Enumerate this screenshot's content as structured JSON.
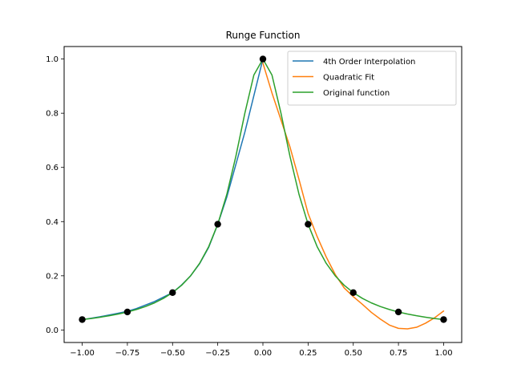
{
  "chart_data": {
    "type": "line",
    "title": "Runge Function",
    "xlabel": "",
    "ylabel": "",
    "xlim": [
      -1.1,
      1.1
    ],
    "ylim": [
      -0.0462,
      1.0462
    ],
    "xticks": [
      -1.0,
      -0.75,
      -0.5,
      -0.25,
      0.0,
      0.25,
      0.5,
      0.75,
      1.0
    ],
    "xtick_labels": [
      "−1.00",
      "−0.75",
      "−0.50",
      "−0.25",
      "0.00",
      "0.25",
      "0.50",
      "0.75",
      "1.00"
    ],
    "yticks": [
      0.0,
      0.2,
      0.4,
      0.6,
      0.8,
      1.0
    ],
    "ytick_labels": [
      "0.0",
      "0.2",
      "0.4",
      "0.6",
      "0.8",
      "1.0"
    ],
    "grid": false,
    "legend_position": "top-right",
    "series": [
      {
        "name": "4th Order Interpolation",
        "color": "#1f77b4",
        "x": [
          -1.0,
          -0.9,
          -0.8,
          -0.75,
          -0.7,
          -0.6,
          -0.5,
          -0.45,
          -0.4,
          -0.35,
          -0.3,
          -0.25,
          -0.2,
          -0.15,
          -0.1,
          -0.05,
          0.0
        ],
        "y": [
          0.038,
          0.049,
          0.062,
          0.069,
          0.079,
          0.105,
          0.138,
          0.166,
          0.2,
          0.245,
          0.305,
          0.39,
          0.49,
          0.61,
          0.73,
          0.865,
          1.0
        ]
      },
      {
        "name": "Quadratic Fit",
        "color": "#ff7f0e",
        "x": [
          0.0,
          0.05,
          0.1,
          0.15,
          0.2,
          0.25,
          0.3,
          0.35,
          0.4,
          0.45,
          0.5,
          0.55,
          0.6,
          0.65,
          0.7,
          0.75,
          0.8,
          0.85,
          0.9,
          0.95,
          1.0
        ],
        "y": [
          0.985,
          0.875,
          0.775,
          0.675,
          0.555,
          0.43,
          0.345,
          0.27,
          0.205,
          0.155,
          0.123,
          0.095,
          0.065,
          0.04,
          0.018,
          0.006,
          0.004,
          0.01,
          0.025,
          0.045,
          0.07
        ]
      },
      {
        "name": "Original function",
        "color": "#2ca02c",
        "x": [
          -1.0,
          -0.95,
          -0.9,
          -0.85,
          -0.8,
          -0.75,
          -0.7,
          -0.65,
          -0.6,
          -0.55,
          -0.5,
          -0.45,
          -0.4,
          -0.35,
          -0.3,
          -0.25,
          -0.2,
          -0.15,
          -0.1,
          -0.05,
          0.0,
          0.05,
          0.1,
          0.15,
          0.2,
          0.25,
          0.3,
          0.35,
          0.4,
          0.45,
          0.5,
          0.55,
          0.6,
          0.65,
          0.7,
          0.75,
          0.8,
          0.85,
          0.9,
          0.95,
          1.0
        ],
        "y": [
          0.0385,
          0.0424,
          0.0471,
          0.0525,
          0.0588,
          0.0664,
          0.0755,
          0.0865,
          0.1,
          0.1168,
          0.1379,
          0.1649,
          0.2,
          0.2462,
          0.3077,
          0.3902,
          0.5,
          0.64,
          0.8,
          0.9412,
          1.0,
          0.9412,
          0.8,
          0.64,
          0.5,
          0.3902,
          0.3077,
          0.2462,
          0.2,
          0.1649,
          0.1379,
          0.1168,
          0.1,
          0.0865,
          0.0755,
          0.0664,
          0.0588,
          0.0525,
          0.0471,
          0.0424,
          0.0385
        ]
      }
    ],
    "points": {
      "color": "#000000",
      "x": [
        -1.0,
        -0.75,
        -0.5,
        -0.25,
        0.0,
        0.25,
        0.5,
        0.75,
        1.0
      ],
      "y": [
        0.0385,
        0.0664,
        0.1379,
        0.3902,
        1.0,
        0.3902,
        0.1379,
        0.0664,
        0.0385
      ]
    }
  }
}
